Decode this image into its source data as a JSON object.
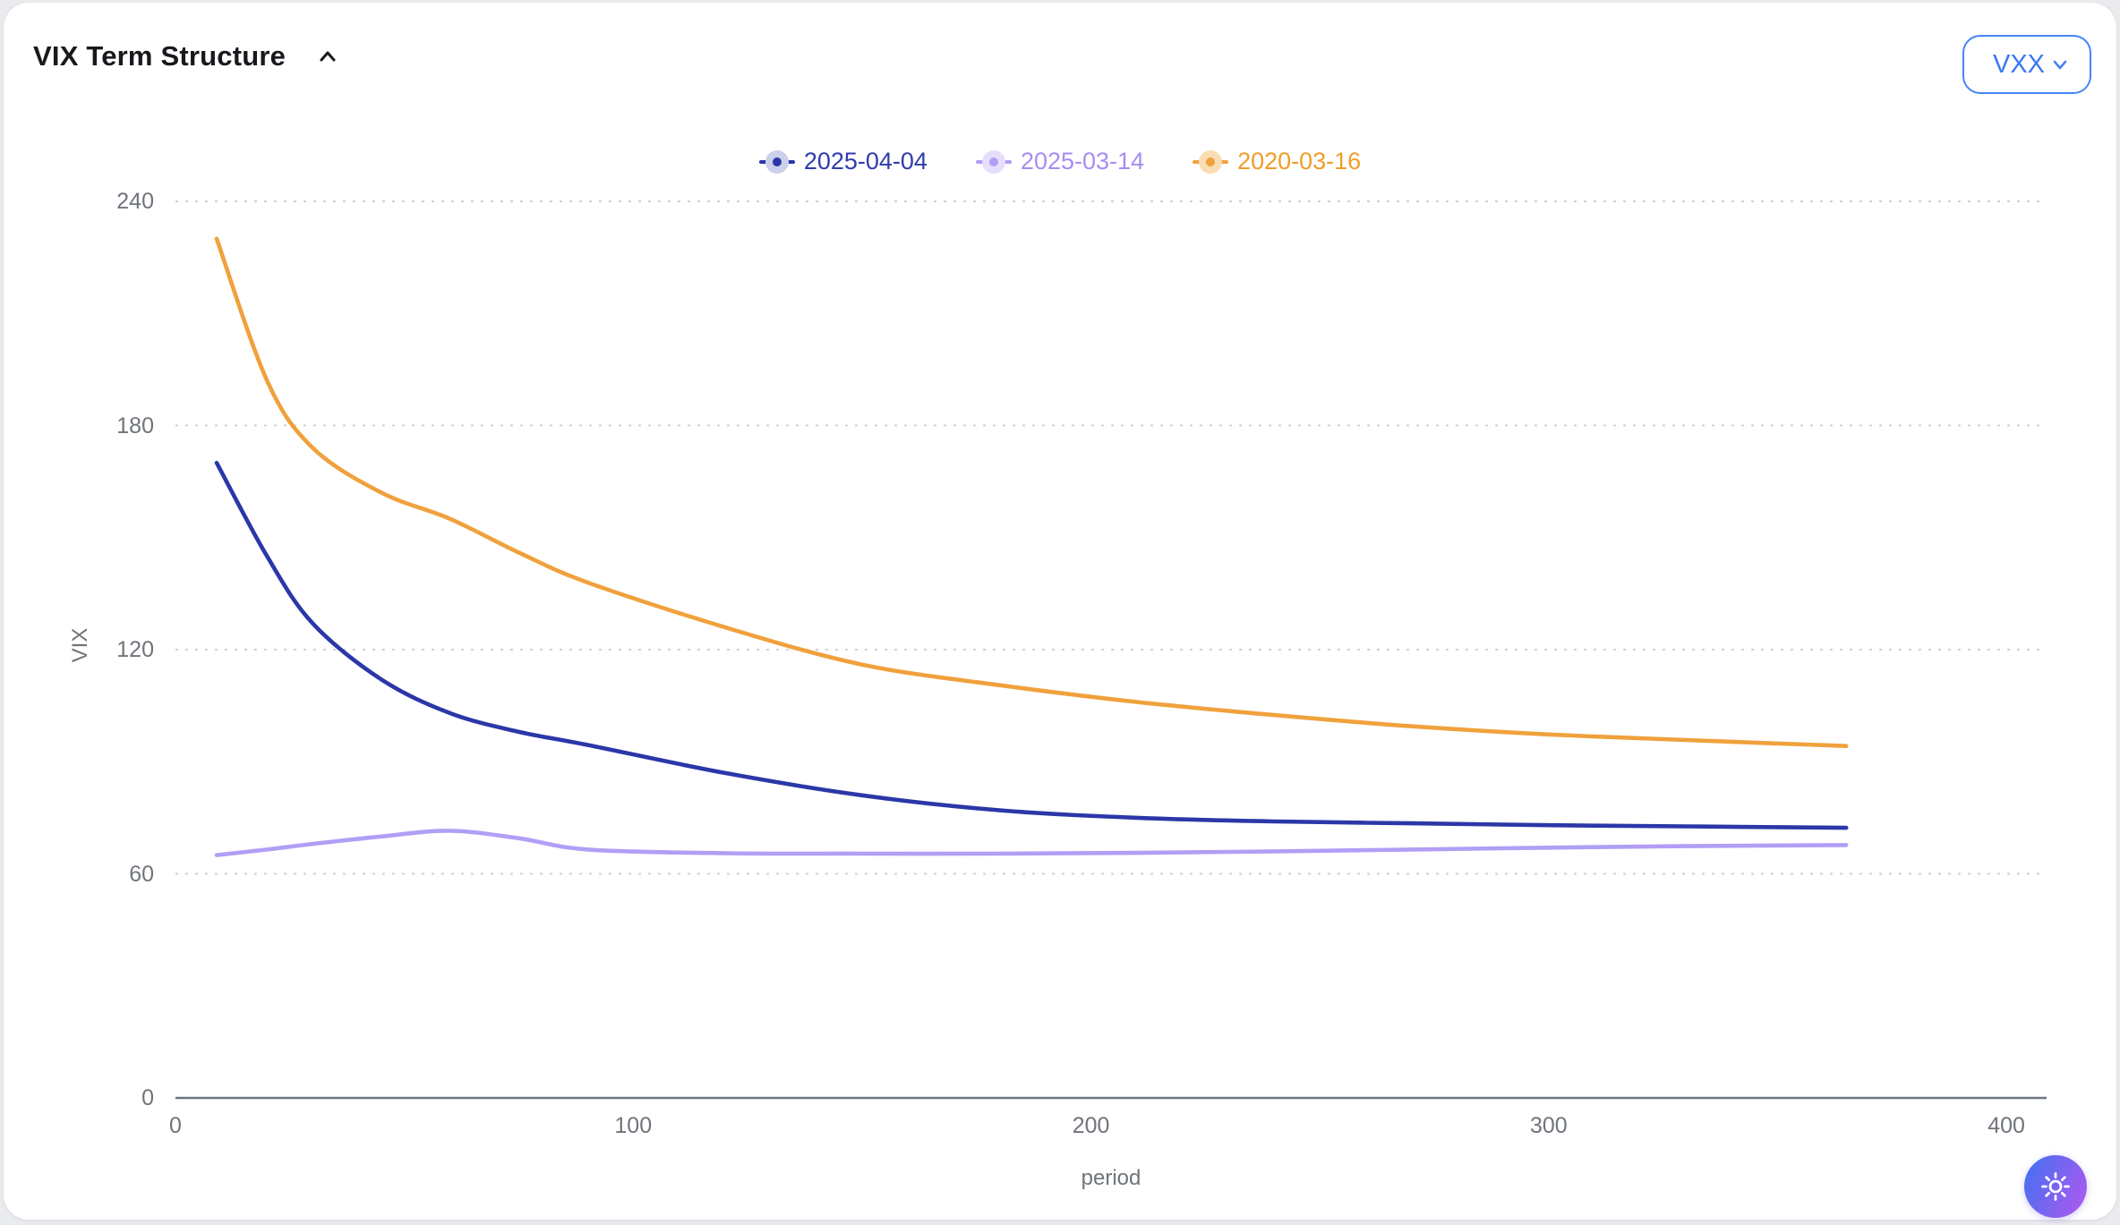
{
  "header": {
    "title": "VIX Term Structure",
    "collapse_icon": "chevron-up",
    "symbol_select": {
      "value": "VXX",
      "icon": "chevron-down",
      "accent_color": "#3a76f3"
    }
  },
  "footer": {
    "theme_toggle_icon": "sun"
  },
  "chart_data": {
    "type": "line",
    "title": "VIX Term Structure",
    "xlabel": "period",
    "ylabel": "VIX",
    "xlim": [
      0,
      408
    ],
    "ylim": [
      0,
      240
    ],
    "x_ticks": [
      0,
      100,
      200,
      300,
      400
    ],
    "y_ticks": [
      0,
      60,
      120,
      180,
      240
    ],
    "grid": "horizontal-dotted",
    "gridline_color": "#cdd0d6",
    "axis_line_color": "#6e747e",
    "legend_position": "top-center",
    "x": [
      9,
      20,
      30,
      45,
      60,
      75,
      90,
      120,
      150,
      180,
      210,
      240,
      270,
      300,
      330,
      365
    ],
    "series": [
      {
        "name": "2025-04-04",
        "color": "#2b37a8",
        "legend_text_color": "#2f3caa",
        "legend_halo_color": "#ccd0ea",
        "values": [
          170,
          145,
          127,
          112,
          103,
          98,
          94.5,
          87,
          81,
          77,
          75,
          74,
          73.5,
          73,
          72.7,
          72.3
        ]
      },
      {
        "name": "2025-03-14",
        "color": "#b19ef5",
        "legend_text_color": "#a78df2",
        "legend_halo_color": "#e6defc",
        "values": [
          65,
          66.5,
          68,
          70,
          71.5,
          69.5,
          66.5,
          65.5,
          65.4,
          65.4,
          65.6,
          66,
          66.5,
          67,
          67.4,
          67.7
        ]
      },
      {
        "name": "2020-03-16",
        "color": "#f0a13c",
        "legend_text_color": "#f09d29",
        "legend_halo_color": "#f9ddb4",
        "values": [
          230,
          192,
          174,
          162,
          155,
          146,
          138,
          126,
          116,
          110.5,
          106,
          102.5,
          99.5,
          97.3,
          95.8,
          94.2
        ]
      }
    ]
  }
}
